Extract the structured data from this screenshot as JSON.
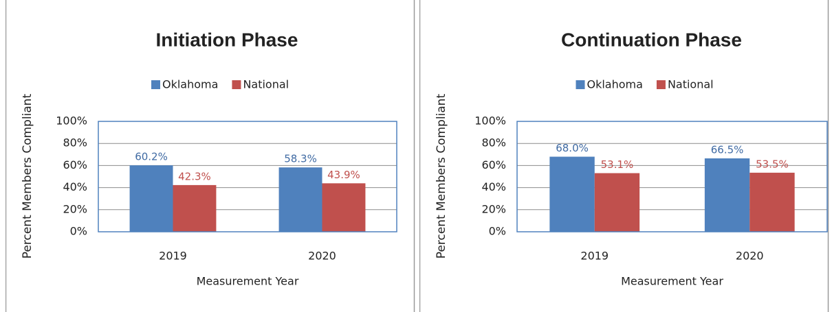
{
  "chart_data": [
    {
      "type": "bar",
      "title": "Initiation Phase",
      "x_label": "Measurement Year",
      "y_label": "Percent Members Compliant",
      "categories": [
        "2019",
        "2020"
      ],
      "series": [
        {
          "name": "Oklahoma",
          "color": "#4f81bd",
          "label_color": "#3f6aa3",
          "values": [
            60.2,
            58.3
          ],
          "value_labels": [
            "60.2%",
            "58.3%"
          ]
        },
        {
          "name": "National",
          "color": "#c0504d",
          "label_color": "#c0504d",
          "values": [
            42.3,
            43.9
          ],
          "value_labels": [
            "42.3%",
            "43.9%"
          ]
        }
      ],
      "ylim": [
        0,
        100
      ],
      "yticks": [
        {
          "value": 0,
          "label": "0%"
        },
        {
          "value": 20,
          "label": "20%"
        },
        {
          "value": 40,
          "label": "40%"
        },
        {
          "value": 60,
          "label": "60%"
        },
        {
          "value": 80,
          "label": "80%"
        },
        {
          "value": 100,
          "label": "100%"
        }
      ],
      "grid": true,
      "legend": "top"
    },
    {
      "type": "bar",
      "title": "Continuation Phase",
      "x_label": "Measurement Year",
      "y_label": "Percent Members Compliant",
      "categories": [
        "2019",
        "2020"
      ],
      "series": [
        {
          "name": "Oklahoma",
          "color": "#4f81bd",
          "label_color": "#3f6aa3",
          "values": [
            68.0,
            66.5
          ],
          "value_labels": [
            "68.0%",
            "66.5%"
          ]
        },
        {
          "name": "National",
          "color": "#c0504d",
          "label_color": "#c0504d",
          "values": [
            53.1,
            53.5
          ],
          "value_labels": [
            "53.1%",
            "53.5%"
          ]
        }
      ],
      "ylim": [
        0,
        100
      ],
      "yticks": [
        {
          "value": 0,
          "label": "0%"
        },
        {
          "value": 20,
          "label": "20%"
        },
        {
          "value": 40,
          "label": "40%"
        },
        {
          "value": 60,
          "label": "60%"
        },
        {
          "value": 80,
          "label": "80%"
        },
        {
          "value": 100,
          "label": "100%"
        }
      ],
      "grid": true,
      "legend": "top"
    }
  ]
}
